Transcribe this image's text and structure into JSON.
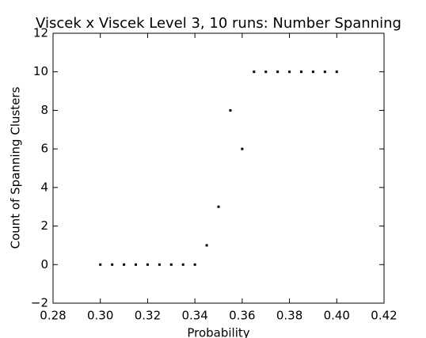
{
  "chart_data": {
    "type": "scatter",
    "title": "Viscek x Viscek Level 3, 10 runs: Number Spanning",
    "xlabel": "Probability",
    "ylabel": "Count of Spanning Clusters",
    "x": [
      0.3,
      0.305,
      0.31,
      0.315,
      0.32,
      0.325,
      0.33,
      0.335,
      0.34,
      0.345,
      0.35,
      0.355,
      0.36,
      0.365,
      0.37,
      0.375,
      0.38,
      0.385,
      0.39,
      0.395,
      0.4
    ],
    "values": [
      0,
      0,
      0,
      0,
      0,
      0,
      0,
      0,
      0,
      1,
      3,
      8,
      6,
      10,
      10,
      10,
      10,
      10,
      10,
      10,
      10
    ],
    "color": "#000000",
    "xlim": [
      0.28,
      0.42
    ],
    "xticks": [
      0.28,
      {
        "value": 0.3,
        "label": "0.30"
      },
      0.32,
      0.34,
      0.36,
      0.38,
      {
        "value": 0.4,
        "label": "0.40"
      },
      0.42
    ],
    "ylim": [
      -2,
      12
    ],
    "yticks": [
      {
        "value": -2,
        "label": "−2"
      },
      0,
      2,
      4,
      6,
      8,
      10,
      12
    ],
    "grid": false
  }
}
